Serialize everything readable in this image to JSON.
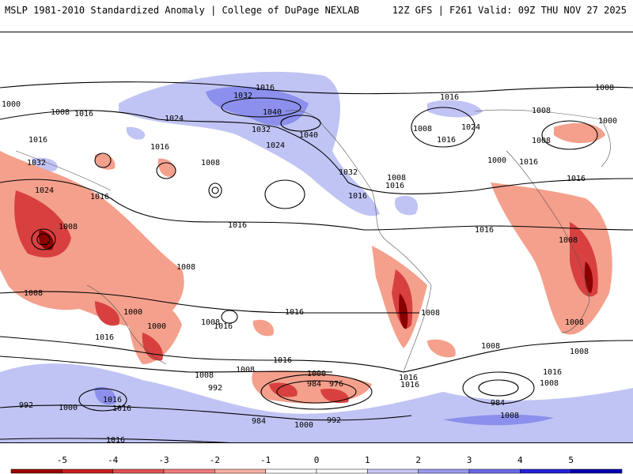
{
  "header": {
    "left": "MSLP 1981-2010 Standardized Anomaly | College of DuPage NEXLAB",
    "right": "12Z GFS | F261 Valid: 09Z THU NOV 27 2025"
  },
  "map": {
    "isobar_labels": [
      {
        "id": "l1",
        "text": "1016"
      },
      {
        "id": "l2",
        "text": "1032"
      },
      {
        "id": "l3",
        "text": "1040"
      },
      {
        "id": "l4",
        "text": "1032"
      },
      {
        "id": "l5",
        "text": "1040"
      },
      {
        "id": "l6",
        "text": "1024"
      },
      {
        "id": "l7",
        "text": "1024"
      },
      {
        "id": "l8",
        "text": "1000"
      },
      {
        "id": "l9",
        "text": "1008"
      },
      {
        "id": "l10",
        "text": "1016"
      },
      {
        "id": "l11",
        "text": "1016"
      },
      {
        "id": "l12",
        "text": "1032"
      },
      {
        "id": "l13",
        "text": "1024"
      },
      {
        "id": "l14",
        "text": "1016"
      },
      {
        "id": "l15",
        "text": "1008"
      },
      {
        "id": "l16",
        "text": "1016"
      },
      {
        "id": "l17",
        "text": "1008"
      },
      {
        "id": "l18",
        "text": "1008"
      },
      {
        "id": "l19",
        "text": "1008"
      },
      {
        "id": "l20",
        "text": "1016"
      },
      {
        "id": "l21",
        "text": "1032"
      },
      {
        "id": "l22",
        "text": "1008"
      },
      {
        "id": "l23",
        "text": "1016"
      },
      {
        "id": "l24",
        "text": "1016"
      },
      {
        "id": "l25",
        "text": "1016"
      },
      {
        "id": "l26",
        "text": "1024"
      },
      {
        "id": "l27",
        "text": "1008"
      },
      {
        "id": "l28",
        "text": "1000"
      },
      {
        "id": "l29",
        "text": "1016"
      },
      {
        "id": "l30",
        "text": "1016"
      },
      {
        "id": "l31",
        "text": "1008"
      },
      {
        "id": "l32",
        "text": "1000"
      },
      {
        "id": "l33",
        "text": "1016"
      },
      {
        "id": "l34",
        "text": "1008"
      },
      {
        "id": "l35",
        "text": "1008"
      },
      {
        "id": "l36",
        "text": "1016"
      },
      {
        "id": "l37",
        "text": "1008"
      },
      {
        "id": "l38",
        "text": "1000"
      },
      {
        "id": "l39",
        "text": "1000"
      },
      {
        "id": "l40",
        "text": "1016"
      },
      {
        "id": "l41",
        "text": "1008"
      },
      {
        "id": "l42",
        "text": "1016"
      },
      {
        "id": "l43",
        "text": "1016"
      },
      {
        "id": "l44",
        "text": "1008"
      },
      {
        "id": "l45",
        "text": "1008"
      },
      {
        "id": "l46",
        "text": "992"
      },
      {
        "id": "l47",
        "text": "984"
      },
      {
        "id": "l48",
        "text": "976"
      },
      {
        "id": "l49",
        "text": "1000"
      },
      {
        "id": "l50",
        "text": "1016"
      },
      {
        "id": "l51",
        "text": "1016"
      },
      {
        "id": "l52",
        "text": "1016"
      },
      {
        "id": "l53",
        "text": "1008"
      },
      {
        "id": "l54",
        "text": "1008"
      },
      {
        "id": "l55",
        "text": "1008"
      },
      {
        "id": "l56",
        "text": "1016"
      },
      {
        "id": "l57",
        "text": "1016"
      },
      {
        "id": "l58",
        "text": "1016"
      },
      {
        "id": "l59",
        "text": "984"
      },
      {
        "id": "l60",
        "text": "1000"
      },
      {
        "id": "l61",
        "text": "992"
      },
      {
        "id": "l62",
        "text": "1000"
      },
      {
        "id": "l63",
        "text": "1008"
      },
      {
        "id": "l64",
        "text": "1016"
      },
      {
        "id": "l65",
        "text": "1008"
      },
      {
        "id": "l66",
        "text": "1016"
      },
      {
        "id": "l67",
        "text": "1008"
      },
      {
        "id": "l68",
        "text": "1016"
      },
      {
        "id": "l69",
        "text": "984"
      },
      {
        "id": "l70",
        "text": "1008"
      },
      {
        "id": "l71",
        "text": "992"
      },
      {
        "id": "l72",
        "text": "1008"
      }
    ]
  },
  "colorbar": {
    "ticks": [
      "-5",
      "-4",
      "-3",
      "-2",
      "-1",
      "0",
      "1",
      "2",
      "3",
      "4",
      "5"
    ],
    "colors": [
      "#9b0000",
      "#c81e1e",
      "#e05050",
      "#f07c7c",
      "#f8b0a0",
      "#ffffff",
      "#ffffff",
      "#c8c8f8",
      "#9898f0",
      "#6868e8",
      "#2020d8",
      "#0000b0"
    ]
  },
  "colors": {
    "neg_strong": "#8b0000",
    "neg_mid": "#d84040",
    "neg_light": "#f4a08c",
    "pos_light": "#c0c4f4",
    "pos_mid": "#8c90ec"
  }
}
